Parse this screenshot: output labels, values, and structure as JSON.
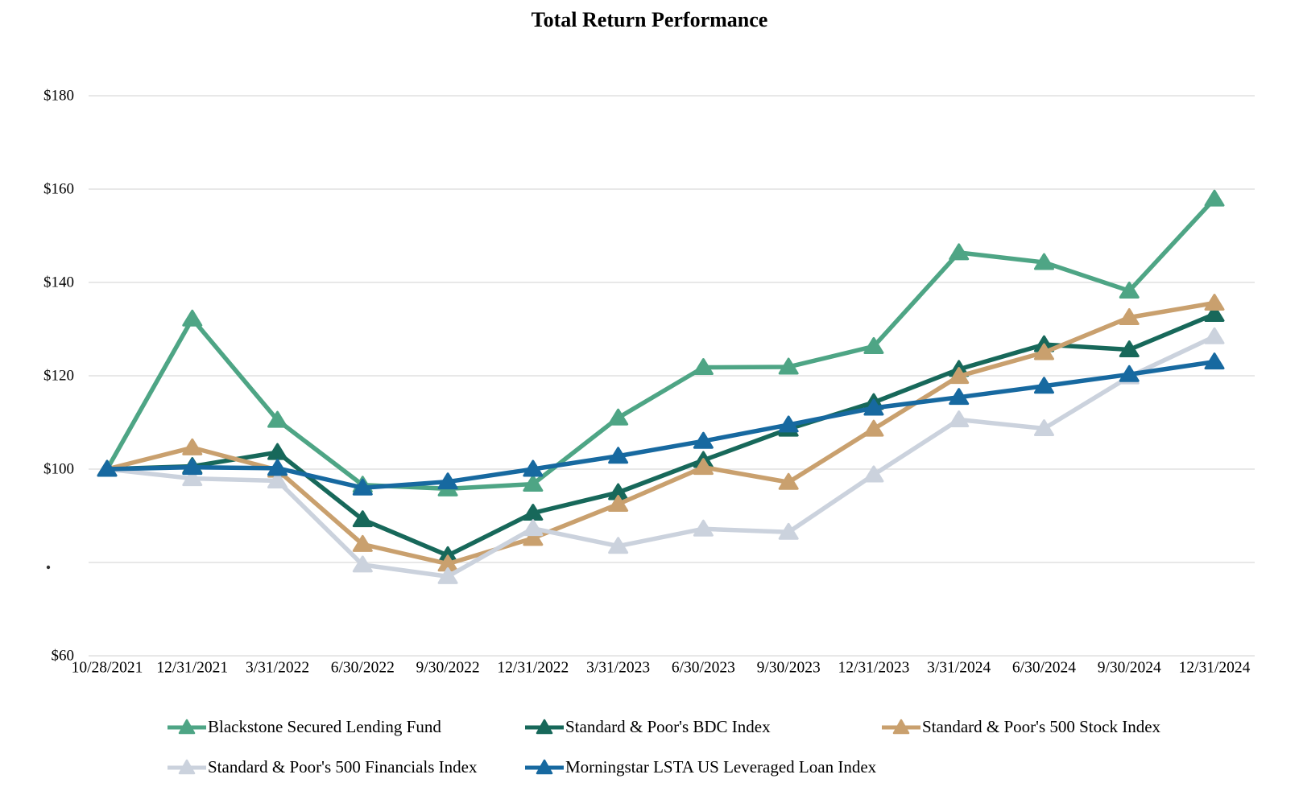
{
  "chart_data": {
    "type": "line",
    "title": "Total Return Performance",
    "xlabel": "",
    "ylabel": "",
    "ylim": [
      60,
      180
    ],
    "grid": "horizontal",
    "legend_position": "bottom",
    "y_ticks": [
      {
        "value": 180,
        "label": "$180"
      },
      {
        "value": 160,
        "label": "$160"
      },
      {
        "value": 140,
        "label": "$140"
      },
      {
        "value": 120,
        "label": "$120"
      },
      {
        "value": 100,
        "label": "$100"
      },
      {
        "value": 80,
        "label": "."
      },
      {
        "value": 60,
        "label": "$60"
      }
    ],
    "categories": [
      "10/28/2021",
      "12/31/2021",
      "3/31/2022",
      "6/30/2022",
      "9/30/2022",
      "12/31/2022",
      "3/31/2023",
      "6/30/2023",
      "9/30/2023",
      "12/31/2023",
      "3/31/2024",
      "6/30/2024",
      "9/30/2024",
      "12/31/2024"
    ],
    "series": [
      {
        "name": "Blackstone Secured Lending Fund",
        "color": "#4EA585",
        "values": [
          100,
          132.2,
          110.5,
          96.6,
          95.8,
          96.8,
          111.0,
          121.8,
          121.9,
          126.3,
          146.4,
          144.3,
          138.2,
          157.9
        ]
      },
      {
        "name": "Standard & Poor's BDC Index",
        "color": "#17685A",
        "values": [
          100,
          100.6,
          103.6,
          89.2,
          81.5,
          90.6,
          95.0,
          101.9,
          108.6,
          114.3,
          121.4,
          126.7,
          125.6,
          133.2
        ]
      },
      {
        "name": "Standard & Poor's 500 Stock Index",
        "color": "#C9A06E",
        "values": [
          100,
          104.6,
          99.8,
          83.9,
          79.7,
          85.2,
          92.5,
          100.4,
          97.2,
          108.6,
          119.9,
          125.0,
          132.5,
          135.6
        ]
      },
      {
        "name": "Standard & Poor's 500 Financials Index",
        "color": "#CBD2DD",
        "values": [
          100,
          98.0,
          97.5,
          79.5,
          77.0,
          87.3,
          83.5,
          87.2,
          86.5,
          98.8,
          110.6,
          108.7,
          119.8,
          128.4
        ]
      },
      {
        "name": "Morningstar LSTA US Leveraged Loan Index",
        "color": "#1769A0",
        "values": [
          100,
          100.4,
          100.2,
          96.0,
          97.3,
          100.0,
          102.8,
          106.0,
          109.5,
          113.1,
          115.4,
          117.8,
          120.3,
          123.0
        ]
      }
    ]
  },
  "colors": {
    "gridline": "#d9d9d9",
    "axis_text": "#000000"
  }
}
